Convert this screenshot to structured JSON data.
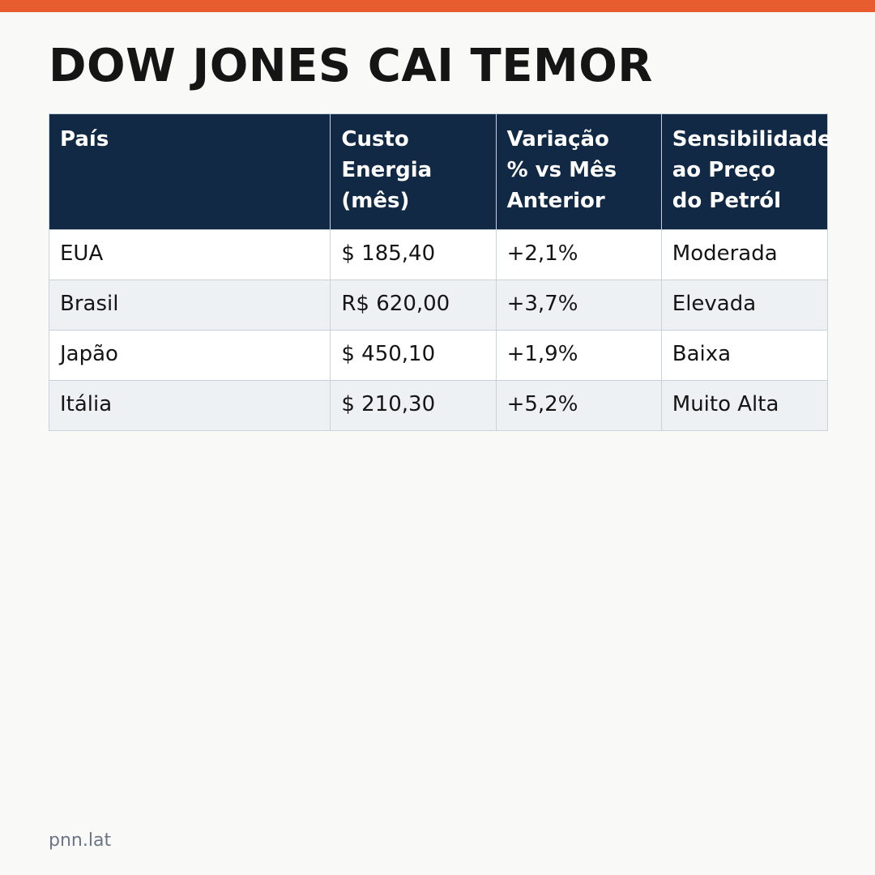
{
  "page": {
    "accent_color": "#e85d2f",
    "header_bg_color": "#112944",
    "title": "DOW JONES CAI TEMOR",
    "footer_source": "pnn.lat"
  },
  "table": {
    "headers": [
      [
        "País"
      ],
      [
        "Custo",
        "Energia",
        "(mês)"
      ],
      [
        "Variação",
        "% vs Mês",
        "Anterior"
      ],
      [
        "Sensibilidade",
        "ao Preço",
        "do Petról"
      ]
    ],
    "rows": [
      [
        "EUA",
        "$ 185,40",
        "+2,1%",
        "Moderada"
      ],
      [
        "Brasil",
        "R$ 620,00",
        "+3,7%",
        "Elevada"
      ],
      [
        "Japão",
        "$ 450,10",
        "+1,9%",
        "Baixa"
      ],
      [
        "Itália",
        "$ 210,30",
        "+5,2%",
        "Muito Alta"
      ]
    ]
  }
}
